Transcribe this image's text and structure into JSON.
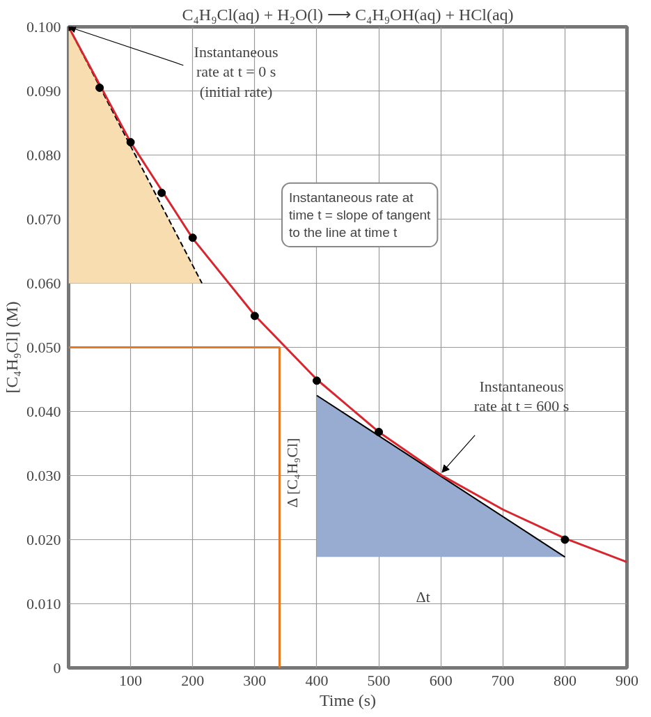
{
  "chart_data": {
    "type": "line",
    "title": "C₄H₉Cl(aq) + H₂O(l) ⟶ C₄H₉OH(aq) + HCl(aq)",
    "xlabel": "Time (s)",
    "ylabel": "[C₄H₉Cl] (M)",
    "xlim": [
      0,
      900
    ],
    "ylim": [
      0,
      0.1
    ],
    "xticks": [
      {
        "value": 0,
        "label": null
      },
      100,
      200,
      300,
      400,
      500,
      600,
      700,
      800,
      900
    ],
    "yticks": [
      0,
      {
        "value": 0.01,
        "label": "0.010"
      },
      {
        "value": 0.02,
        "label": "0.020"
      },
      {
        "value": 0.03,
        "label": "0.030"
      },
      {
        "value": 0.04,
        "label": "0.040"
      },
      {
        "value": 0.05,
        "label": "0.050"
      },
      {
        "value": 0.06,
        "label": "0.060"
      },
      {
        "value": 0.07,
        "label": "0.070"
      },
      {
        "value": 0.08,
        "label": "0.080"
      },
      {
        "value": 0.09,
        "label": "0.090"
      },
      {
        "value": 0.1,
        "label": "0.100"
      }
    ],
    "grid": true,
    "series": [
      {
        "type": "line",
        "color": "#000000",
        "colors": [
          "#f7ddb0",
          "#f7ddb0"
        ],
        "line_style": "dashed",
        "x": [
          0,
          215
        ],
        "values": [
          0.1,
          0.06
        ],
        "lower": [
          0.06,
          0.06
        ],
        "upper": [
          0.1,
          0.06
        ]
      },
      {
        "type": "line",
        "color": "#000000",
        "colors": [
          "#98abd1",
          "#98abd1"
        ],
        "x": [
          400,
          800
        ],
        "values": [
          0.0425,
          0.0173
        ],
        "lower": [
          0.0173,
          0.0173
        ],
        "upper": [
          0.0425,
          0.0173
        ]
      },
      {
        "type": "line",
        "color": "#e87722",
        "x": [
          0,
          340,
          340
        ],
        "values": [
          0.05,
          0.05,
          0
        ]
      },
      {
        "color": "#d9252e",
        "x": [
          0,
          100,
          200,
          300,
          400,
          500,
          600,
          700,
          800,
          900
        ],
        "values": [
          0.1,
          0.082,
          0.067,
          0.055,
          0.045,
          0.0368,
          0.0301,
          0.0247,
          0.0202,
          0.0165
        ]
      },
      {
        "type": "scatter",
        "marker": "circle",
        "color": "#000000",
        "x": [
          0,
          50,
          100,
          150,
          200,
          300,
          400,
          500,
          800
        ],
        "values": [
          0.1,
          0.0905,
          0.082,
          0.0741,
          0.0671,
          0.0549,
          0.0448,
          0.0368,
          0.02
        ]
      }
    ],
    "annotations": [
      {
        "text": "Instantaneous\nrate at t = 0 s\n(initial rate)",
        "x": 0,
        "y": 0.1
      },
      "Instantaneous rate at\ntime t = slope of tangent\nto the line at time t",
      "Instantaneous\nrate at t = 600 s",
      "Δ [C₄H₉Cl]",
      "Δt"
    ]
  }
}
